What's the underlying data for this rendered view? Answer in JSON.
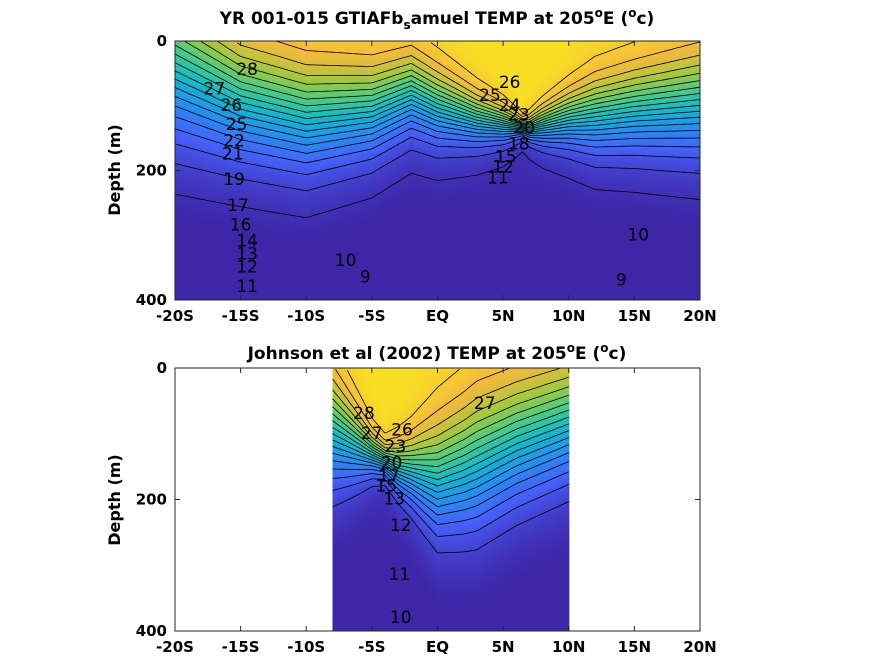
{
  "chart_data": [
    {
      "type": "contour",
      "title": "YR 001-015 GTIAFb_samuel TEMP at 205°E (°c)",
      "title_parts": {
        "pre": "YR 001-015 GTIAFb",
        "sub": "s",
        "mid": "amuel TEMP at 205",
        "sup1": "o",
        "post1": "E (",
        "sup2": "o",
        "post2": "c)"
      },
      "xlabel": "",
      "ylabel": "Depth (m)",
      "xlim": [
        -20,
        20
      ],
      "ylim": [
        0,
        400
      ],
      "y_reversed": true,
      "xticks": [
        -20,
        -15,
        -10,
        -5,
        0,
        5,
        10,
        15,
        20
      ],
      "xtick_labels": [
        "-20S",
        "-15S",
        "-10S",
        "-5S",
        "EQ",
        "5N",
        "10N",
        "15N",
        "20N"
      ],
      "yticks": [
        0,
        200,
        400
      ],
      "ytick_labels": [
        "0",
        "200",
        "400"
      ],
      "data_extent": [
        -20,
        20
      ],
      "contour_levels": [
        9,
        10,
        11,
        12,
        13,
        14,
        15,
        16,
        17,
        18,
        19,
        20,
        21,
        22,
        23,
        24,
        25,
        26,
        27,
        28
      ],
      "thermocline_depth": [
        [
          -20,
          40
        ],
        [
          -15,
          90
        ],
        [
          -10,
          115
        ],
        [
          -5,
          105
        ],
        [
          -2,
          80
        ],
        [
          0,
          100
        ],
        [
          3,
          120
        ],
        [
          5.5,
          130
        ],
        [
          7,
          135
        ],
        [
          10,
          120
        ],
        [
          15,
          105
        ],
        [
          20,
          95
        ]
      ],
      "thermocline_width": [
        [
          -20,
          200
        ],
        [
          -15,
          160
        ],
        [
          -10,
          150
        ],
        [
          -5,
          125
        ],
        [
          0,
          100
        ],
        [
          5,
          50
        ],
        [
          6.5,
          25
        ],
        [
          8,
          50
        ],
        [
          12,
          100
        ],
        [
          20,
          140
        ]
      ],
      "contour_labels": [
        {
          "text": "28",
          "x": -14.5,
          "y": 45
        },
        {
          "text": "27",
          "x": -17.0,
          "y": 75
        },
        {
          "text": "26",
          "x": -15.7,
          "y": 100
        },
        {
          "text": "25",
          "x": -15.3,
          "y": 130
        },
        {
          "text": "22",
          "x": -15.5,
          "y": 155
        },
        {
          "text": "21",
          "x": -15.6,
          "y": 175
        },
        {
          "text": "19",
          "x": -15.5,
          "y": 215
        },
        {
          "text": "17",
          "x": -15.2,
          "y": 255
        },
        {
          "text": "16",
          "x": -15.0,
          "y": 285
        },
        {
          "text": "14",
          "x": -14.5,
          "y": 310
        },
        {
          "text": "13",
          "x": -14.5,
          "y": 330
        },
        {
          "text": "12",
          "x": -14.5,
          "y": 350
        },
        {
          "text": "11",
          "x": -14.5,
          "y": 380
        },
        {
          "text": "26",
          "x": 5.5,
          "y": 65
        },
        {
          "text": "25",
          "x": 4.0,
          "y": 85
        },
        {
          "text": "24",
          "x": 5.5,
          "y": 100
        },
        {
          "text": "23",
          "x": 6.2,
          "y": 115
        },
        {
          "text": "20",
          "x": 6.6,
          "y": 135
        },
        {
          "text": "18",
          "x": 6.2,
          "y": 160
        },
        {
          "text": "15",
          "x": 5.2,
          "y": 180
        },
        {
          "text": "12",
          "x": 5.0,
          "y": 195
        },
        {
          "text": "11",
          "x": 4.6,
          "y": 212
        },
        {
          "text": "10",
          "x": 15.3,
          "y": 300
        },
        {
          "text": "10",
          "x": -7.0,
          "y": 340
        },
        {
          "text": "9",
          "x": -5.5,
          "y": 365
        },
        {
          "text": "9",
          "x": 14.0,
          "y": 370
        }
      ]
    },
    {
      "type": "contour",
      "title": "Johnson et al (2002) TEMP at 205°E (°c)",
      "title_parts": {
        "pre": "Johnson et al (2002) TEMP at 205",
        "sub": "",
        "mid": "",
        "sup1": "o",
        "post1": "E (",
        "sup2": "o",
        "post2": "c)"
      },
      "xlabel": "",
      "ylabel": "Depth (m)",
      "xlim": [
        -20,
        20
      ],
      "ylim": [
        0,
        400
      ],
      "y_reversed": true,
      "xticks": [
        -20,
        -15,
        -10,
        -5,
        0,
        5,
        10,
        15,
        20
      ],
      "xtick_labels": [
        "-20S",
        "-15S",
        "-10S",
        "-5S",
        "EQ",
        "5N",
        "10N",
        "15N",
        "20N"
      ],
      "yticks": [
        0,
        200,
        400
      ],
      "ytick_labels": [
        "0",
        "200",
        "400"
      ],
      "data_extent": [
        -8,
        10
      ],
      "contour_levels": [
        10,
        11,
        12,
        13,
        14,
        15,
        16,
        17,
        18,
        19,
        20,
        21,
        22,
        23,
        24,
        25,
        26,
        27,
        28
      ],
      "thermocline_depth": [
        [
          -8,
          95
        ],
        [
          -5,
          130
        ],
        [
          -3,
          150
        ],
        [
          -1,
          160
        ],
        [
          0,
          165
        ],
        [
          2,
          150
        ],
        [
          4,
          130
        ],
        [
          6,
          110
        ],
        [
          8,
          95
        ],
        [
          10,
          80
        ]
      ],
      "thermocline_width": [
        [
          -8,
          150
        ],
        [
          -5,
          60
        ],
        [
          -4,
          45
        ],
        [
          -2,
          90
        ],
        [
          0,
          150
        ],
        [
          3,
          180
        ],
        [
          6,
          170
        ],
        [
          10,
          160
        ]
      ],
      "contour_labels": [
        {
          "text": "28",
          "x": -5.6,
          "y": 70
        },
        {
          "text": "27",
          "x": -5.0,
          "y": 100
        },
        {
          "text": "27",
          "x": 3.6,
          "y": 55
        },
        {
          "text": "26",
          "x": -2.7,
          "y": 95
        },
        {
          "text": "23",
          "x": -3.2,
          "y": 120
        },
        {
          "text": "20",
          "x": -3.5,
          "y": 145
        },
        {
          "text": "17",
          "x": -3.7,
          "y": 165
        },
        {
          "text": "15",
          "x": -3.9,
          "y": 180
        },
        {
          "text": "13",
          "x": -3.3,
          "y": 200
        },
        {
          "text": "12",
          "x": -2.8,
          "y": 240
        },
        {
          "text": "11",
          "x": -2.9,
          "y": 315
        },
        {
          "text": "10",
          "x": -2.8,
          "y": 380
        }
      ]
    }
  ]
}
